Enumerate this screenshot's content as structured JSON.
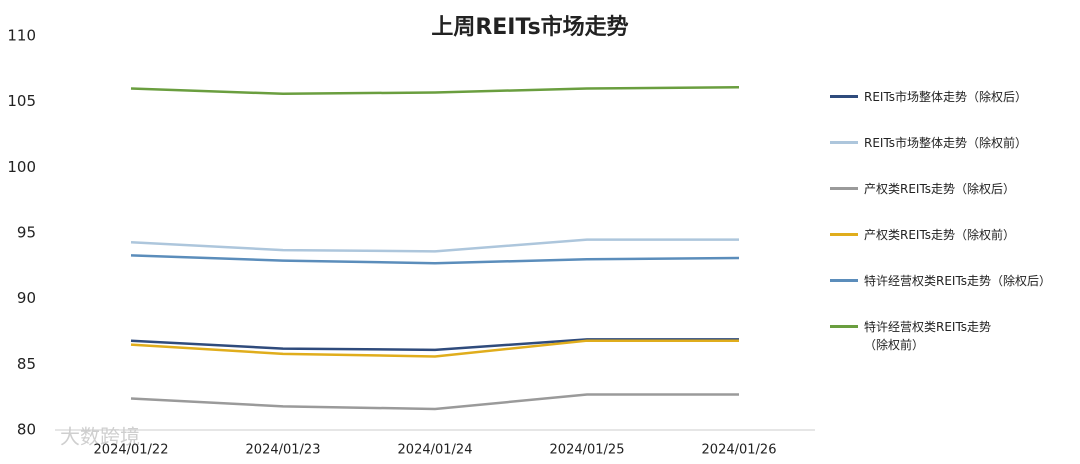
{
  "chart_data": {
    "type": "line",
    "title": "上周REITs市场走势",
    "categories": [
      "2024/01/22",
      "2024/01/23",
      "2024/01/24",
      "2024/01/25",
      "2024/01/26"
    ],
    "series": [
      {
        "name": "REITs市场整体走势（除权后）",
        "color": "#2f4b7c",
        "values": [
          86.8,
          86.2,
          86.1,
          86.9,
          86.9
        ]
      },
      {
        "name": "REITs市场整体走势（除权前）",
        "color": "#adc6dc",
        "values": [
          94.3,
          93.7,
          93.6,
          94.5,
          94.5
        ]
      },
      {
        "name": "产权类REITs走势（除权后）",
        "color": "#9a9a9a",
        "values": [
          82.4,
          81.8,
          81.6,
          82.7,
          82.7
        ]
      },
      {
        "name": "产权类REITs走势（除权前）",
        "color": "#e0ad1c",
        "values": [
          86.5,
          85.8,
          85.6,
          86.8,
          86.8
        ]
      },
      {
        "name": "特许经营权类REITs走势（除权后）",
        "color": "#5b8dbb",
        "values": [
          93.3,
          92.9,
          92.7,
          93.0,
          93.1
        ]
      },
      {
        "name": "特许经营权类REITs走势（除权前）",
        "color": "#6a9e3f",
        "values": [
          106.0,
          105.6,
          105.7,
          106.0,
          106.1
        ]
      }
    ],
    "ylim": [
      80,
      110
    ],
    "yticks": [
      80,
      85,
      90,
      95,
      100,
      105,
      110
    ],
    "grid": false,
    "legend": "right",
    "watermark": "大数跨境"
  }
}
